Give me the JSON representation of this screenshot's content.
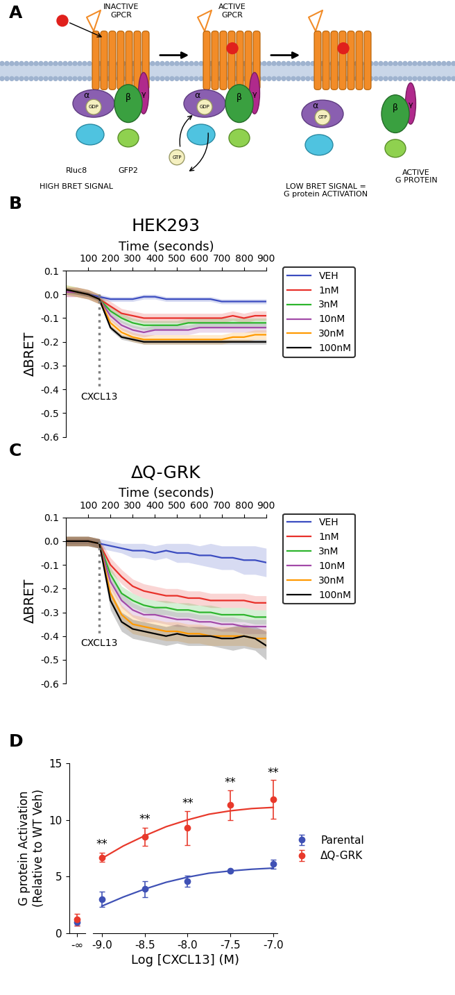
{
  "diagram": {
    "panel": "A",
    "texts": {
      "inactive": "INACTIVE\nGPCR",
      "active": "ACTIVE\nGPCR",
      "active_g": "ACTIVE\nG PROTEIN",
      "high": "HIGH BRET SIGNAL",
      "low": "LOW BRET SIGNAL =\nG protein ACTIVATION",
      "rluc": "Rluc8",
      "gfp": "GFP2",
      "gdp": "GDP",
      "gtp": "GTP",
      "alpha": "α",
      "beta": "β",
      "gamma": "γ"
    }
  },
  "chart_data": [
    {
      "panel": "B",
      "type": "line",
      "title": "HEK293",
      "x_label": "Time (seconds)",
      "y_label": "ΔBRET",
      "x": [
        0,
        50,
        100,
        150,
        200,
        250,
        300,
        350,
        400,
        450,
        500,
        550,
        600,
        650,
        700,
        750,
        800,
        850,
        900
      ],
      "xlim": [
        0,
        900
      ],
      "xticks": [
        100,
        200,
        300,
        400,
        500,
        600,
        700,
        800,
        900
      ],
      "ylim": [
        -0.6,
        0.1
      ],
      "yticks": [
        -0.6,
        -0.5,
        -0.4,
        -0.3,
        -0.2,
        -0.1,
        0.0,
        0.1
      ],
      "legend": "upper left",
      "annotations": [
        {
          "text": "CXCL13",
          "x": 150,
          "y": -0.4
        }
      ],
      "series": [
        {
          "name": "VEH",
          "color": "#3b4cc0",
          "values": [
            0.01,
            0.01,
            0.0,
            -0.01,
            -0.02,
            -0.02,
            -0.02,
            -0.01,
            -0.01,
            -0.02,
            -0.02,
            -0.02,
            -0.02,
            -0.02,
            -0.03,
            -0.03,
            -0.03,
            -0.03,
            -0.03
          ],
          "error": [
            0.01,
            0.01,
            0.01,
            0.01,
            0.01,
            0.01,
            0.01,
            0.01,
            0.01,
            0.01,
            0.01,
            0.01,
            0.01,
            0.01,
            0.01,
            0.01,
            0.01,
            0.01,
            0.01
          ]
        },
        {
          "name": "1nM",
          "color": "#e8302a",
          "values": [
            0.01,
            0.01,
            0.0,
            -0.02,
            -0.05,
            -0.08,
            -0.09,
            -0.1,
            -0.1,
            -0.1,
            -0.1,
            -0.1,
            -0.1,
            -0.1,
            -0.1,
            -0.09,
            -0.1,
            -0.09,
            -0.09
          ],
          "error": [
            0.02,
            0.02,
            0.02,
            0.02,
            0.02,
            0.02,
            0.02,
            0.02,
            0.02,
            0.02,
            0.02,
            0.02,
            0.02,
            0.02,
            0.02,
            0.02,
            0.02,
            0.02,
            0.02
          ]
        },
        {
          "name": "3nM",
          "color": "#2db52d",
          "values": [
            0.02,
            0.01,
            0.0,
            -0.02,
            -0.07,
            -0.1,
            -0.12,
            -0.13,
            -0.13,
            -0.13,
            -0.13,
            -0.12,
            -0.12,
            -0.12,
            -0.12,
            -0.12,
            -0.12,
            -0.12,
            -0.12
          ],
          "error": [
            0.02,
            0.02,
            0.02,
            0.02,
            0.02,
            0.02,
            0.02,
            0.02,
            0.02,
            0.02,
            0.02,
            0.02,
            0.02,
            0.02,
            0.02,
            0.02,
            0.02,
            0.02,
            0.02
          ]
        },
        {
          "name": "10nM",
          "color": "#a24aa8",
          "values": [
            0.01,
            0.01,
            0.0,
            -0.02,
            -0.09,
            -0.13,
            -0.15,
            -0.16,
            -0.15,
            -0.15,
            -0.15,
            -0.15,
            -0.14,
            -0.14,
            -0.14,
            -0.14,
            -0.14,
            -0.14,
            -0.14
          ],
          "error": [
            0.02,
            0.02,
            0.02,
            0.02,
            0.02,
            0.02,
            0.02,
            0.02,
            0.02,
            0.02,
            0.02,
            0.02,
            0.02,
            0.02,
            0.02,
            0.02,
            0.02,
            0.02,
            0.02
          ]
        },
        {
          "name": "30nM",
          "color": "#ff9900",
          "values": [
            0.02,
            0.01,
            0.0,
            -0.02,
            -0.12,
            -0.16,
            -0.18,
            -0.19,
            -0.19,
            -0.19,
            -0.19,
            -0.19,
            -0.19,
            -0.19,
            -0.19,
            -0.18,
            -0.18,
            -0.17,
            -0.17
          ],
          "error": [
            0.02,
            0.02,
            0.02,
            0.02,
            0.02,
            0.02,
            0.02,
            0.02,
            0.02,
            0.02,
            0.02,
            0.02,
            0.02,
            0.02,
            0.02,
            0.02,
            0.02,
            0.02,
            0.02
          ]
        },
        {
          "name": "100nM",
          "color": "#000000",
          "values": [
            0.02,
            0.01,
            0.0,
            -0.02,
            -0.14,
            -0.18,
            -0.19,
            -0.2,
            -0.2,
            -0.2,
            -0.2,
            -0.2,
            -0.2,
            -0.2,
            -0.2,
            -0.2,
            -0.2,
            -0.2,
            -0.2
          ],
          "error": [
            0.01,
            0.01,
            0.01,
            0.01,
            0.01,
            0.01,
            0.01,
            0.01,
            0.01,
            0.01,
            0.01,
            0.01,
            0.01,
            0.01,
            0.01,
            0.01,
            0.01,
            0.01,
            0.01
          ]
        }
      ]
    },
    {
      "panel": "C",
      "type": "line",
      "title": "ΔQ-GRK",
      "x_label": "Time (seconds)",
      "y_label": "ΔBRET",
      "x": [
        0,
        50,
        100,
        150,
        200,
        250,
        300,
        350,
        400,
        450,
        500,
        550,
        600,
        650,
        700,
        750,
        800,
        850,
        900
      ],
      "xlim": [
        0,
        900
      ],
      "xticks": [
        100,
        200,
        300,
        400,
        500,
        600,
        700,
        800,
        900
      ],
      "ylim": [
        -0.6,
        0.1
      ],
      "yticks": [
        -0.6,
        -0.5,
        -0.4,
        -0.3,
        -0.2,
        -0.1,
        0.0,
        0.1
      ],
      "legend": "upper left",
      "annotations": [
        {
          "text": "CXCL13",
          "x": 150,
          "y": -0.4
        }
      ],
      "series": [
        {
          "name": "VEH",
          "color": "#3b4cc0",
          "values": [
            0.0,
            0.0,
            0.0,
            -0.01,
            -0.02,
            -0.03,
            -0.04,
            -0.04,
            -0.05,
            -0.04,
            -0.05,
            -0.05,
            -0.06,
            -0.06,
            -0.07,
            -0.07,
            -0.08,
            -0.08,
            -0.09
          ],
          "error": [
            0.01,
            0.01,
            0.01,
            0.02,
            0.02,
            0.02,
            0.03,
            0.03,
            0.03,
            0.03,
            0.04,
            0.04,
            0.04,
            0.05,
            0.05,
            0.05,
            0.06,
            0.06,
            0.06
          ]
        },
        {
          "name": "1nM",
          "color": "#e8302a",
          "values": [
            0.0,
            0.0,
            0.0,
            -0.01,
            -0.1,
            -0.15,
            -0.19,
            -0.21,
            -0.22,
            -0.23,
            -0.23,
            -0.24,
            -0.24,
            -0.25,
            -0.25,
            -0.25,
            -0.25,
            -0.26,
            -0.26
          ],
          "error": [
            0.02,
            0.02,
            0.02,
            0.02,
            0.03,
            0.03,
            0.03,
            0.03,
            0.03,
            0.03,
            0.03,
            0.03,
            0.03,
            0.03,
            0.03,
            0.03,
            0.03,
            0.03,
            0.03
          ]
        },
        {
          "name": "3nM",
          "color": "#2db52d",
          "values": [
            0.0,
            0.0,
            0.0,
            -0.01,
            -0.14,
            -0.22,
            -0.25,
            -0.27,
            -0.28,
            -0.28,
            -0.29,
            -0.29,
            -0.3,
            -0.3,
            -0.31,
            -0.31,
            -0.31,
            -0.32,
            -0.32
          ],
          "error": [
            0.02,
            0.02,
            0.02,
            0.02,
            0.03,
            0.03,
            0.03,
            0.03,
            0.03,
            0.03,
            0.03,
            0.03,
            0.03,
            0.03,
            0.03,
            0.03,
            0.03,
            0.03,
            0.03
          ]
        },
        {
          "name": "10nM",
          "color": "#a24aa8",
          "values": [
            0.0,
            0.0,
            0.0,
            -0.01,
            -0.17,
            -0.25,
            -0.29,
            -0.31,
            -0.31,
            -0.32,
            -0.33,
            -0.33,
            -0.34,
            -0.34,
            -0.35,
            -0.35,
            -0.36,
            -0.36,
            -0.36
          ],
          "error": [
            0.02,
            0.02,
            0.02,
            0.02,
            0.03,
            0.03,
            0.03,
            0.03,
            0.03,
            0.03,
            0.03,
            0.03,
            0.03,
            0.03,
            0.03,
            0.03,
            0.03,
            0.03,
            0.03
          ]
        },
        {
          "name": "30nM",
          "color": "#ff9900",
          "values": [
            0.0,
            0.0,
            0.0,
            -0.01,
            -0.22,
            -0.31,
            -0.35,
            -0.36,
            -0.37,
            -0.38,
            -0.38,
            -0.39,
            -0.39,
            -0.4,
            -0.4,
            -0.4,
            -0.4,
            -0.41,
            -0.41
          ],
          "error": [
            0.02,
            0.02,
            0.02,
            0.02,
            0.04,
            0.04,
            0.04,
            0.04,
            0.04,
            0.04,
            0.04,
            0.04,
            0.04,
            0.04,
            0.04,
            0.04,
            0.04,
            0.04,
            0.04
          ]
        },
        {
          "name": "100nM",
          "color": "#000000",
          "values": [
            0.0,
            0.0,
            0.0,
            -0.01,
            -0.25,
            -0.34,
            -0.37,
            -0.38,
            -0.39,
            -0.4,
            -0.39,
            -0.4,
            -0.4,
            -0.4,
            -0.41,
            -0.41,
            -0.4,
            -0.41,
            -0.44
          ],
          "error": [
            0.02,
            0.02,
            0.02,
            0.02,
            0.04,
            0.04,
            0.04,
            0.04,
            0.04,
            0.04,
            0.04,
            0.04,
            0.04,
            0.04,
            0.04,
            0.05,
            0.05,
            0.05,
            0.06
          ]
        }
      ]
    },
    {
      "panel": "D",
      "type": "scatter",
      "x_label": "Log [CXCL13] (M)",
      "y_label": "G protein Activation\n(Relative to WT Veh)",
      "x": [
        -9.0,
        -8.5,
        -8.0,
        -7.5,
        -7.0
      ],
      "xlim": [
        -9.1,
        -6.95
      ],
      "xticks": [
        -9.0,
        -8.5,
        -8.0,
        -7.5,
        -7.0
      ],
      "ylim": [
        0,
        15
      ],
      "yticks": [
        0,
        5,
        10,
        15
      ],
      "vehicle_label": "-∞",
      "fit_x": [
        -9.0,
        -8.75,
        -8.5,
        -8.25,
        -8.0,
        -7.75,
        -7.5,
        -7.25,
        -7.0
      ],
      "legend": "center left",
      "annotations": [
        {
          "text": "**",
          "x": -9.0,
          "y": 7.3
        },
        {
          "text": "**",
          "x": -8.5,
          "y": 9.5
        },
        {
          "text": "**",
          "x": -8.0,
          "y": 10.9
        },
        {
          "text": "**",
          "x": -7.5,
          "y": 12.7
        },
        {
          "text": "**",
          "x": -7.0,
          "y": 13.6
        }
      ],
      "series": [
        {
          "name": "Parental",
          "color": "#3f51b5",
          "marker": "o",
          "vehicle_value": 1.0,
          "vehicle_error": 0.3,
          "values": [
            3.0,
            3.9,
            4.6,
            5.5,
            6.1
          ],
          "error": [
            0.7,
            0.7,
            0.5,
            0.1,
            0.4
          ],
          "fit_values": [
            2.4,
            3.2,
            3.9,
            4.5,
            4.95,
            5.3,
            5.5,
            5.65,
            5.75
          ]
        },
        {
          "name": "ΔQ-GRK",
          "color": "#e8392b",
          "marker": "o",
          "vehicle_value": 1.2,
          "vehicle_error": 0.5,
          "values": [
            6.7,
            8.5,
            9.3,
            11.3,
            11.8
          ],
          "error": [
            0.4,
            0.8,
            1.5,
            1.3,
            1.7
          ],
          "fit_values": [
            6.6,
            7.7,
            8.6,
            9.4,
            10.0,
            10.5,
            10.8,
            11.0,
            11.1
          ]
        }
      ]
    }
  ]
}
